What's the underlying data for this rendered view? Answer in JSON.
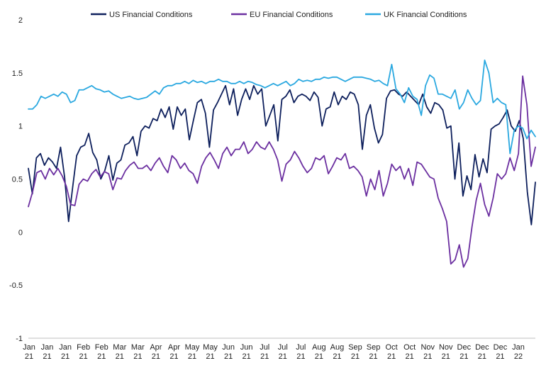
{
  "chart_data": {
    "type": "line",
    "title": "",
    "xlabel": "",
    "ylabel": "",
    "ylim": [
      -1,
      2
    ],
    "yticks": [
      "2",
      "1.5",
      "1",
      "0.5",
      "0",
      "-0.5",
      "-1"
    ],
    "ytick_values": [
      2,
      1.5,
      1,
      0.5,
      0,
      -0.5,
      -1
    ],
    "grid": false,
    "legend_position": "top",
    "xticks": [
      {
        "month": "Jan",
        "year": "21"
      },
      {
        "month": "Jan",
        "year": "21"
      },
      {
        "month": "Jan",
        "year": "21"
      },
      {
        "month": "Feb",
        "year": "21"
      },
      {
        "month": "Feb",
        "year": "21"
      },
      {
        "month": "Mar",
        "year": "21"
      },
      {
        "month": "Mar",
        "year": "21"
      },
      {
        "month": "Apr",
        "year": "21"
      },
      {
        "month": "Apr",
        "year": "21"
      },
      {
        "month": "May",
        "year": "21"
      },
      {
        "month": "May",
        "year": "21"
      },
      {
        "month": "Jun",
        "year": "21"
      },
      {
        "month": "Jun",
        "year": "21"
      },
      {
        "month": "Jul",
        "year": "21"
      },
      {
        "month": "Jul",
        "year": "21"
      },
      {
        "month": "Jul",
        "year": "21"
      },
      {
        "month": "Aug",
        "year": "21"
      },
      {
        "month": "Aug",
        "year": "21"
      },
      {
        "month": "Sep",
        "year": "21"
      },
      {
        "month": "Sep",
        "year": "21"
      },
      {
        "month": "Oct",
        "year": "21"
      },
      {
        "month": "Oct",
        "year": "21"
      },
      {
        "month": "Nov",
        "year": "21"
      },
      {
        "month": "Nov",
        "year": "21"
      },
      {
        "month": "Dec",
        "year": "21"
      },
      {
        "month": "Dec",
        "year": "21"
      },
      {
        "month": "Dec",
        "year": "21"
      },
      {
        "month": "Jan",
        "year": "22"
      }
    ],
    "series": [
      {
        "name": "US Financial Conditions",
        "color": "#0d1f5c",
        "values": [
          0.6,
          0.36,
          0.7,
          0.74,
          0.63,
          0.7,
          0.66,
          0.6,
          0.8,
          0.52,
          0.1,
          0.42,
          0.72,
          0.8,
          0.82,
          0.93,
          0.75,
          0.68,
          0.5,
          0.58,
          0.72,
          0.49,
          0.65,
          0.68,
          0.82,
          0.84,
          0.9,
          0.72,
          0.95,
          1.0,
          0.98,
          1.07,
          1.05,
          1.16,
          1.08,
          1.18,
          0.97,
          1.18,
          1.1,
          1.16,
          0.87,
          1.05,
          1.22,
          1.25,
          1.12,
          0.8,
          1.15,
          1.22,
          1.3,
          1.38,
          1.2,
          1.35,
          1.1,
          1.25,
          1.35,
          1.25,
          1.38,
          1.3,
          1.35,
          1.0,
          1.1,
          1.2,
          0.86,
          1.25,
          1.28,
          1.34,
          1.22,
          1.28,
          1.3,
          1.28,
          1.24,
          1.32,
          1.27,
          1.0,
          1.16,
          1.18,
          1.32,
          1.2,
          1.28,
          1.25,
          1.32,
          1.3,
          1.2,
          0.78,
          1.1,
          1.2,
          0.98,
          0.84,
          0.92,
          1.26,
          1.33,
          1.34,
          1.3,
          1.28,
          1.32,
          1.28,
          1.24,
          1.2,
          1.3,
          1.18,
          1.12,
          1.22,
          1.2,
          1.15,
          0.98,
          1.0,
          0.5,
          0.84,
          0.34,
          0.53,
          0.4,
          0.73,
          0.52,
          0.69,
          0.56,
          0.97,
          1.0,
          1.02,
          1.08,
          1.15,
          1.0,
          0.95,
          1.05,
          0.88,
          0.38,
          0.07,
          0.47
        ]
      },
      {
        "name": "EU Financial Conditions",
        "color": "#6b2fa0",
        "values": [
          0.24,
          0.38,
          0.56,
          0.58,
          0.5,
          0.6,
          0.54,
          0.6,
          0.53,
          0.43,
          0.26,
          0.25,
          0.45,
          0.5,
          0.48,
          0.55,
          0.59,
          0.52,
          0.57,
          0.55,
          0.4,
          0.51,
          0.5,
          0.58,
          0.63,
          0.66,
          0.6,
          0.6,
          0.63,
          0.58,
          0.65,
          0.7,
          0.62,
          0.56,
          0.72,
          0.68,
          0.6,
          0.65,
          0.58,
          0.55,
          0.46,
          0.62,
          0.7,
          0.75,
          0.68,
          0.6,
          0.74,
          0.8,
          0.72,
          0.78,
          0.78,
          0.85,
          0.74,
          0.78,
          0.85,
          0.8,
          0.78,
          0.85,
          0.78,
          0.68,
          0.48,
          0.64,
          0.68,
          0.76,
          0.7,
          0.62,
          0.56,
          0.6,
          0.7,
          0.68,
          0.72,
          0.55,
          0.62,
          0.7,
          0.68,
          0.74,
          0.6,
          0.62,
          0.58,
          0.52,
          0.34,
          0.5,
          0.4,
          0.58,
          0.34,
          0.46,
          0.64,
          0.58,
          0.62,
          0.5,
          0.6,
          0.44,
          0.66,
          0.64,
          0.58,
          0.52,
          0.5,
          0.32,
          0.22,
          0.1,
          -0.3,
          -0.26,
          -0.12,
          -0.33,
          -0.25,
          0.05,
          0.3,
          0.46,
          0.26,
          0.15,
          0.32,
          0.55,
          0.5,
          0.55,
          0.7,
          0.58,
          0.74,
          1.47,
          1.2,
          0.62,
          0.8
        ]
      },
      {
        "name": "UK Financial Conditions",
        "color": "#2aa8e0",
        "values": [
          1.16,
          1.16,
          1.2,
          1.28,
          1.26,
          1.28,
          1.3,
          1.28,
          1.32,
          1.3,
          1.22,
          1.24,
          1.34,
          1.34,
          1.36,
          1.38,
          1.35,
          1.34,
          1.32,
          1.33,
          1.3,
          1.28,
          1.26,
          1.27,
          1.28,
          1.26,
          1.25,
          1.26,
          1.27,
          1.3,
          1.33,
          1.3,
          1.36,
          1.38,
          1.38,
          1.4,
          1.4,
          1.42,
          1.4,
          1.43,
          1.41,
          1.42,
          1.4,
          1.42,
          1.42,
          1.44,
          1.42,
          1.42,
          1.4,
          1.4,
          1.42,
          1.4,
          1.42,
          1.41,
          1.39,
          1.38,
          1.36,
          1.38,
          1.4,
          1.38,
          1.4,
          1.42,
          1.38,
          1.4,
          1.44,
          1.42,
          1.43,
          1.42,
          1.44,
          1.44,
          1.46,
          1.45,
          1.46,
          1.46,
          1.44,
          1.42,
          1.44,
          1.46,
          1.46,
          1.46,
          1.45,
          1.44,
          1.42,
          1.43,
          1.4,
          1.38,
          1.58,
          1.35,
          1.3,
          1.22,
          1.36,
          1.28,
          1.25,
          1.1,
          1.38,
          1.48,
          1.45,
          1.3,
          1.3,
          1.28,
          1.26,
          1.34,
          1.16,
          1.22,
          1.34,
          1.26,
          1.2,
          1.24,
          1.62,
          1.5,
          1.22,
          1.26,
          1.22,
          1.2,
          0.74,
          0.96,
          1.0,
          0.98,
          0.88,
          0.96,
          0.9
        ]
      }
    ]
  }
}
